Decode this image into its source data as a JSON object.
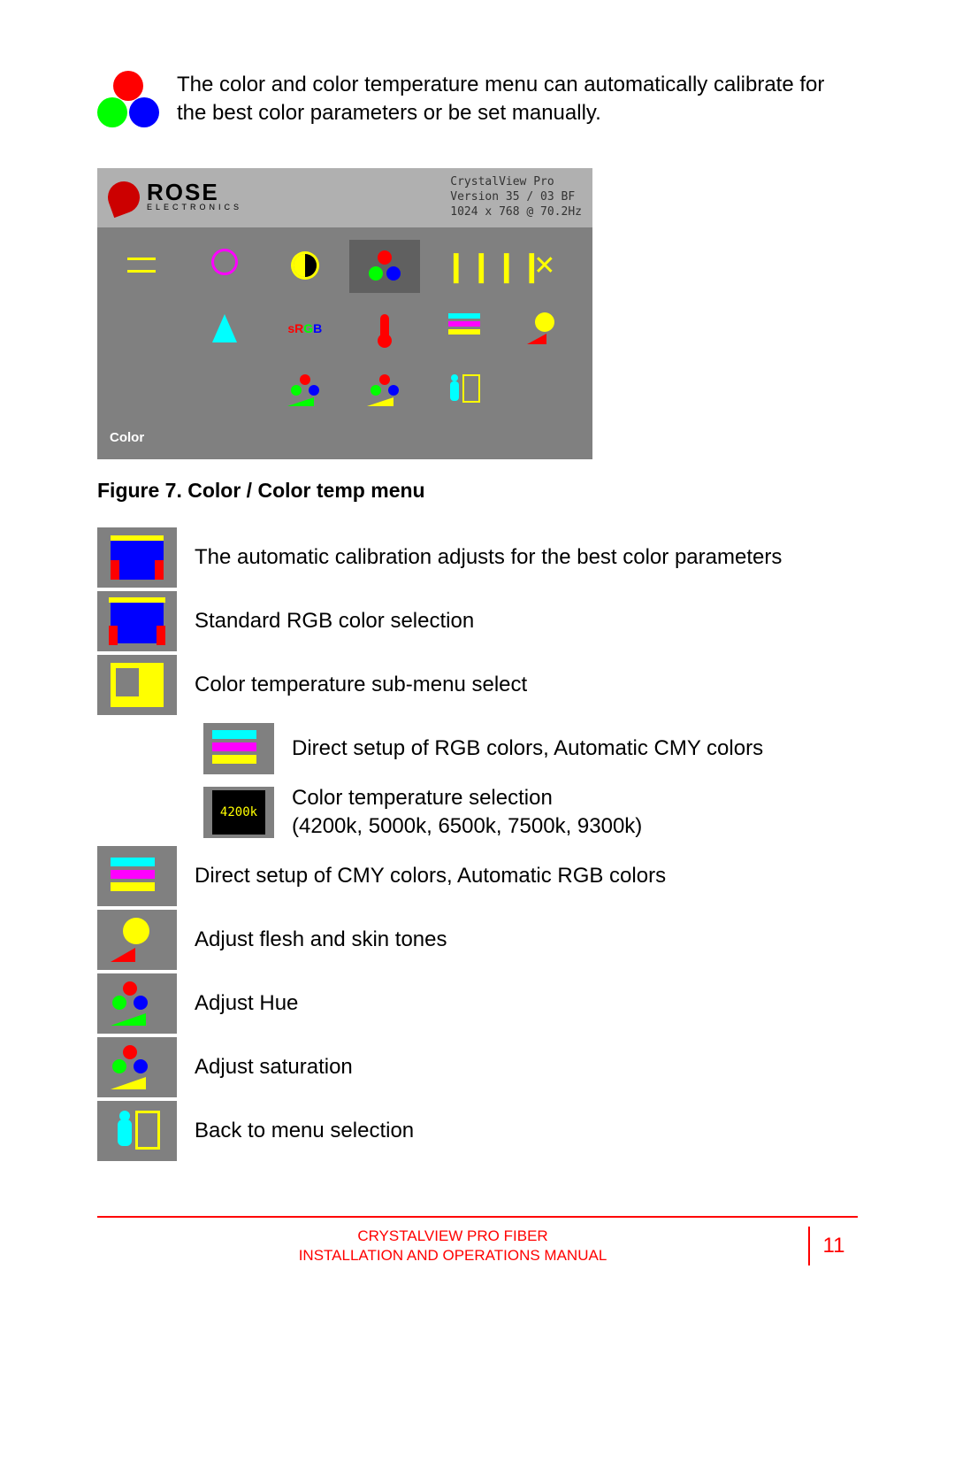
{
  "intro_text": "The color and color temperature menu can automatically calibrate for the best color parameters or be set manually.",
  "osd": {
    "brand_main": "ROSE",
    "brand_sub": "ELECTRONICS",
    "info_line1": "CrystalView Pro",
    "info_line2": "Version 35 / 03 BF",
    "info_line3": "1024 x 768 @ 70.2Hz",
    "footer_label": "Color",
    "selected_index": 3,
    "bg_color": "#808080",
    "header_bg": "#b0b0b0"
  },
  "figure_caption": "Figure 7. Color / Color temp menu",
  "legend": {
    "rows": [
      {
        "text": "The automatic calibration adjusts for the best color parameters"
      },
      {
        "text": "Standard RGB color selection"
      },
      {
        "text": "Color temperature sub-menu select"
      }
    ],
    "sub_rows": [
      {
        "text": "Direct setup of RGB colors, Automatic CMY colors"
      },
      {
        "text": "Color temperature selection\n(4200k, 5000k, 6500k, 7500k, 9300k)"
      }
    ],
    "rows2": [
      {
        "text": "Direct setup of CMY colors, Automatic RGB colors"
      },
      {
        "text": "Adjust flesh and skin tones"
      },
      {
        "text": "Adjust Hue"
      },
      {
        "text": "Adjust saturation"
      },
      {
        "text": "Back to menu selection"
      }
    ],
    "temp_label": "4200k"
  },
  "footer": {
    "line1": "CRYSTALVIEW PRO FIBER",
    "line2": "INSTALLATION AND OPERATIONS MANUAL",
    "page": "11",
    "color": "#ff0000"
  },
  "colors": {
    "red": "#ff0000",
    "green": "#00ff00",
    "blue": "#0000ff",
    "yellow": "#ffff00",
    "cyan": "#00ffff",
    "magenta": "#ff00ff",
    "gray": "#808080"
  }
}
